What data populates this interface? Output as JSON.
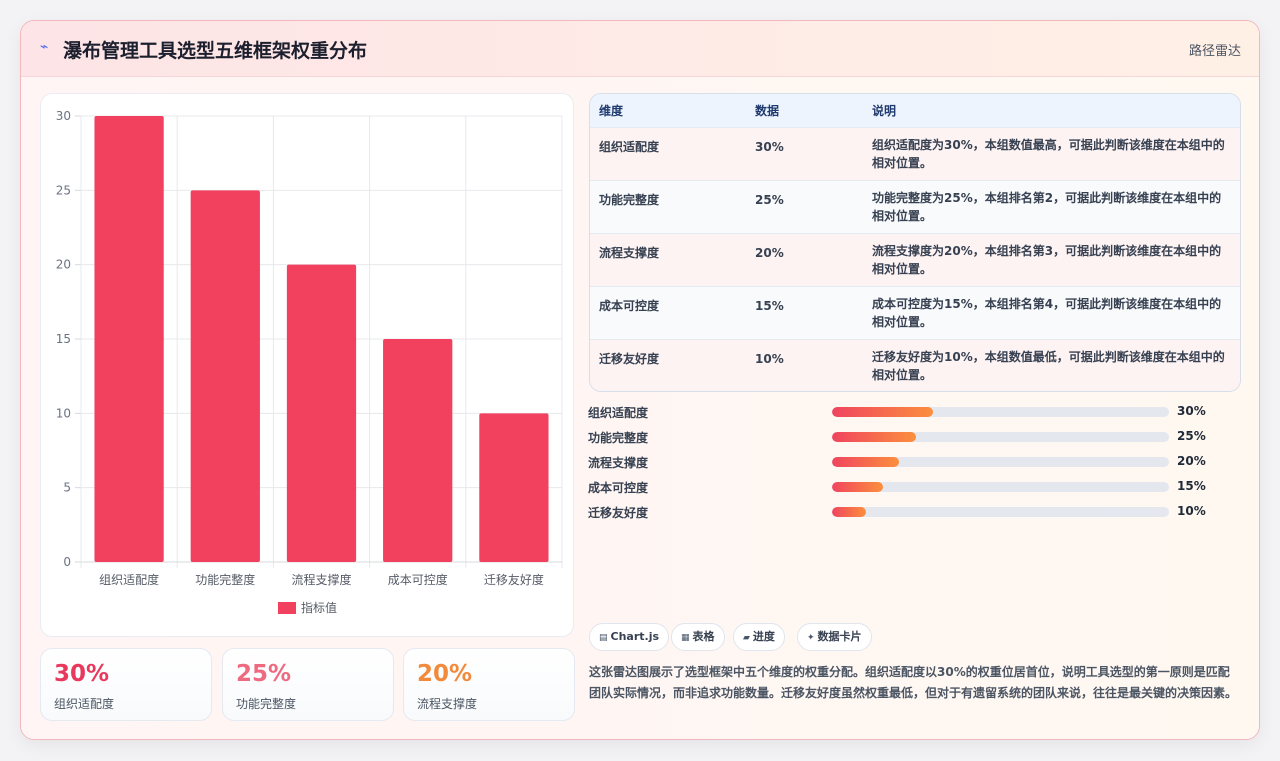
{
  "header": {
    "title": "瀑布管理工具选型五维框架权重分布",
    "badge": "路径雷达",
    "icon": "lightning-icon"
  },
  "chart_data": {
    "type": "bar",
    "categories": [
      "组织适配度",
      "功能完整度",
      "流程支撑度",
      "成本可控度",
      "迁移友好度"
    ],
    "series": [
      {
        "name": "指标值",
        "values": [
          30,
          25,
          20,
          15,
          10
        ],
        "color": "#f2405f"
      }
    ],
    "y_ticks": [
      "0",
      "5",
      "10",
      "15",
      "20",
      "25",
      "30"
    ],
    "ylim": [
      0,
      30
    ],
    "grid": true,
    "legend_position": "bottom"
  },
  "stats": [
    {
      "value": "30%",
      "label": "组织适配度",
      "color": "#e8385c"
    },
    {
      "value": "25%",
      "label": "功能完整度",
      "color": "#ee6a80"
    },
    {
      "value": "20%",
      "label": "流程支撑度",
      "color": "#f28a3c"
    }
  ],
  "table": {
    "headers": [
      "维度",
      "数据",
      "说明"
    ],
    "rows": [
      {
        "dim": "组织适配度",
        "val": "30%",
        "desc": "组织适配度为30%，本组数值最高，可据此判断该维度在本组中的相对位置。"
      },
      {
        "dim": "功能完整度",
        "val": "25%",
        "desc": "功能完整度为25%，本组排名第2，可据此判断该维度在本组中的相对位置。"
      },
      {
        "dim": "流程支撑度",
        "val": "20%",
        "desc": "流程支撑度为20%，本组排名第3，可据此判断该维度在本组中的相对位置。"
      },
      {
        "dim": "成本可控度",
        "val": "15%",
        "desc": "成本可控度为15%，本组排名第4，可据此判断该维度在本组中的相对位置。"
      },
      {
        "dim": "迁移友好度",
        "val": "10%",
        "desc": "迁移友好度为10%，本组数值最低，可据此判断该维度在本组中的相对位置。"
      }
    ]
  },
  "progress": [
    {
      "label": "组织适配度",
      "value": 30,
      "text": "30%"
    },
    {
      "label": "功能完整度",
      "value": 25,
      "text": "25%"
    },
    {
      "label": "流程支撑度",
      "value": 20,
      "text": "20%"
    },
    {
      "label": "成本可控度",
      "value": 15,
      "text": "15%"
    },
    {
      "label": "迁移友好度",
      "value": 10,
      "text": "10%"
    }
  ],
  "chips": [
    {
      "icon": "chart-icon",
      "label": "Chart.js"
    },
    {
      "icon": "table-icon",
      "label": "表格"
    },
    {
      "icon": "progress-icon",
      "label": "进度"
    },
    {
      "icon": "card-icon",
      "label": "数据卡片"
    }
  ],
  "summary": "这张雷达图展示了选型框架中五个维度的权重分配。组织适配度以30%的权重位居首位，说明工具选型的第一原则是匹配团队实际情况，而非追求功能数量。迁移友好度虽然权重最低，但对于有遗留系统的团队来说，往往是最关键的决策因素。"
}
